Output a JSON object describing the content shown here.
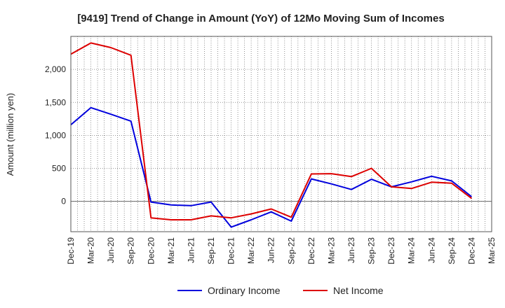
{
  "chart_data": {
    "type": "line",
    "title": "[9419]  Trend of Change in Amount (YoY) of 12Mo Moving Sum of Incomes",
    "ylabel": "Amount (million yen)",
    "xlabel": "",
    "ylim": [
      -460,
      2500
    ],
    "yticks": [
      0,
      500,
      1000,
      1500,
      2000
    ],
    "ytick_labels": [
      "0",
      "500",
      "1,000",
      "1,500",
      "2,000"
    ],
    "x": [
      "Dec-19",
      "Mar-20",
      "Jun-20",
      "Sep-20",
      "Dec-20",
      "Mar-21",
      "Jun-21",
      "Sep-21",
      "Dec-21",
      "Mar-22",
      "Jun-22",
      "Sep-22",
      "Dec-22",
      "Mar-23",
      "Jun-23",
      "Sep-23",
      "Dec-23",
      "Mar-24",
      "Jun-24",
      "Sep-24",
      "Dec-24",
      "Mar-25"
    ],
    "grid": "vertical-dotted",
    "legend_position": "bottom",
    "series": [
      {
        "name": "Ordinary Income",
        "color": "#0000dd",
        "values": [
          1160,
          1420,
          1320,
          1215,
          -10,
          -55,
          -65,
          -10,
          -390,
          -280,
          -160,
          -300,
          340,
          265,
          180,
          335,
          220,
          295,
          380,
          310,
          70,
          null
        ]
      },
      {
        "name": "Net Income",
        "color": "#dd0000",
        "values": [
          2230,
          2400,
          2330,
          2215,
          -250,
          -280,
          -280,
          -220,
          -250,
          -190,
          -115,
          -240,
          415,
          420,
          375,
          500,
          220,
          195,
          290,
          275,
          45,
          null
        ]
      }
    ]
  }
}
